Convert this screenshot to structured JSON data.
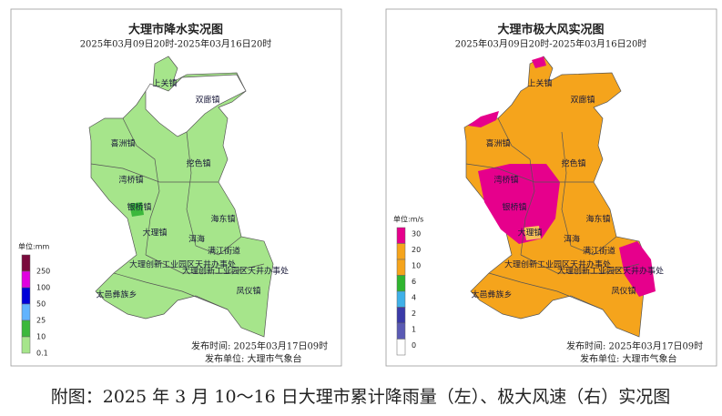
{
  "panels": [
    {
      "title": "大理市降水实况图",
      "subtitle": "2025年03月09日20时-2025年03月16日20时",
      "places": [
        "上关镇",
        "双廊镇",
        "喜洲镇",
        "挖色镇",
        "湾桥镇",
        "银桥镇",
        "海东镇",
        "大理镇",
        "洱海",
        "满江街道",
        "大理创新工业园区天井办事处",
        "大理创新工业园区天井办事处",
        "太邑彝族乡",
        "凤仪镇"
      ],
      "legend": {
        "unit": "单位:mm",
        "labels": [
          250,
          100,
          50,
          25,
          10,
          0.1
        ]
      },
      "publish_time": "发布时间: 2025年03月17日09时",
      "publisher": "发布单位: 大理市气象台"
    },
    {
      "title": "大理市极大风实况图",
      "subtitle": "2025年03月09日20时-2025年03月16日20时",
      "places": [
        "上关镇",
        "双廊镇",
        "喜洲镇",
        "挖色镇",
        "湾桥镇",
        "银桥镇",
        "海东镇",
        "大理镇",
        "洱海",
        "满江街道",
        "大理创新工业园区天井办事处",
        "大理创新工业园区天井办事处",
        "太邑彝族乡",
        "凤仪镇"
      ],
      "legend": {
        "unit": "单位:m/s",
        "labels": [
          30,
          20,
          10,
          6,
          4,
          2,
          1,
          0
        ]
      },
      "publish_time": "发布时间: 2025年03月17日09时",
      "publisher": "发布单位: 大理市气象台"
    }
  ],
  "caption": "附图：2025 年 3 月 10～16 日大理市累计降雨量（左）、极大风速（右）实况图"
}
